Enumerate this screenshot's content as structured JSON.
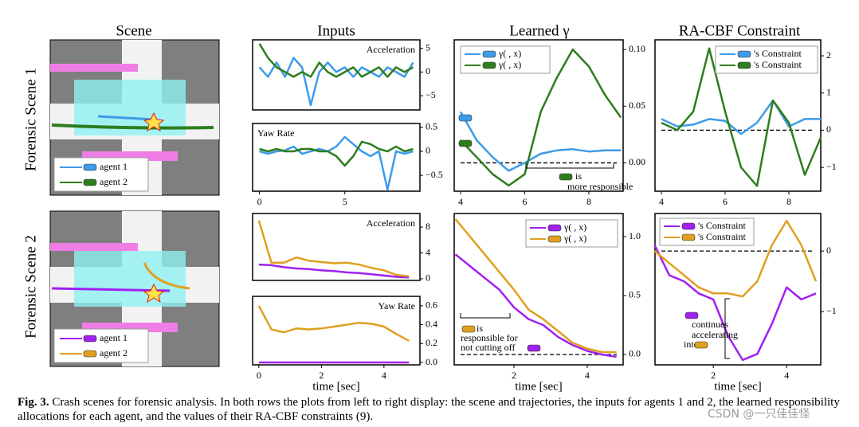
{
  "columns": [
    "Scene",
    "Inputs",
    "Learned γ",
    "RA-CBF Constraint"
  ],
  "rows": [
    "Forensic Scene 1",
    "Forensic Scene 2"
  ],
  "scenes": [
    {
      "legend": [
        "agent 1",
        "agent 2"
      ]
    },
    {
      "legend": [
        "agent 1",
        "agent 2"
      ]
    }
  ],
  "caption": {
    "label": "Fig. 3.",
    "text": "Crash scenes for forensic analysis. In both rows the plots from left to right display: the scene and trajectories, the inputs for agents 1 and 2, the learned responsibility allocations for each agent, and the values of their RA-CBF constraints (9)."
  },
  "watermark": "CSDN @一只佳佳怪",
  "chart_data": [
    {
      "type": "line",
      "title": "Acceleration",
      "x": [
        0,
        0.5,
        1,
        1.5,
        2,
        2.5,
        3,
        3.5,
        4,
        4.5,
        5,
        5.5,
        6,
        6.5,
        7,
        7.5,
        8,
        8.5,
        9
      ],
      "series": [
        {
          "name": "agent 1",
          "color": "#3d9be9",
          "values": [
            1,
            -1,
            2,
            -1,
            3,
            1,
            -7,
            0,
            2,
            0,
            1,
            -1,
            1,
            0,
            -1,
            1,
            0,
            -1,
            2
          ]
        },
        {
          "name": "agent 2",
          "color": "#2e7d1e",
          "values": [
            6,
            3,
            1,
            0,
            -1,
            0,
            -1,
            2,
            0,
            -1,
            0,
            1,
            -1,
            0,
            1,
            -1,
            1,
            0,
            1
          ]
        }
      ],
      "xlim": [
        -0.4,
        9.4
      ],
      "ylim": [
        -8,
        6.8
      ],
      "yticks": [
        5,
        0,
        {
          "value": -5,
          "label": "−5"
        }
      ]
    },
    {
      "type": "line",
      "title": "Yaw Rate",
      "x": [
        0,
        0.5,
        1,
        1.5,
        2,
        2.5,
        3,
        3.5,
        4,
        4.5,
        5,
        5.5,
        6,
        6.5,
        7,
        7.5,
        8,
        8.5,
        9
      ],
      "series": [
        {
          "name": "agent 1",
          "color": "#3d9be9",
          "values": [
            0,
            -0.05,
            0,
            0.02,
            0.1,
            -0.05,
            0,
            0.05,
            0,
            0.1,
            0.3,
            0.15,
            0,
            -0.1,
            0,
            -0.8,
            0,
            -0.05,
            0
          ]
        },
        {
          "name": "agent 2",
          "color": "#2e7d1e",
          "values": [
            0.05,
            0,
            0.05,
            0,
            0,
            0.05,
            0.05,
            0,
            0,
            -0.1,
            -0.3,
            -0.1,
            0.2,
            0.15,
            0.05,
            0,
            0.1,
            0,
            0.05
          ]
        }
      ],
      "xlim": [
        -0.4,
        9.4
      ],
      "ylim": [
        -0.83,
        0.58
      ],
      "yticks": [
        0.5,
        0,
        {
          "value": -0.5,
          "label": "−0.5"
        }
      ],
      "xticks": [
        0,
        5
      ]
    },
    {
      "type": "line",
      "x": [
        4,
        4.5,
        5,
        5.5,
        6,
        6.5,
        7,
        7.5,
        8,
        8.5,
        9
      ],
      "series": [
        {
          "name": "γ( , x)",
          "color": "#3d9be9",
          "values": [
            0.045,
            0.02,
            0.005,
            -0.007,
            0,
            0.008,
            0.011,
            0.012,
            0.01,
            0.011,
            0.011
          ]
        },
        {
          "name": "γ( , x)",
          "color": "#2e7d1e",
          "values": [
            0.02,
            0.005,
            -0.01,
            -0.02,
            -0.01,
            0.045,
            0.075,
            0.1,
            0.085,
            0.06,
            0.04
          ]
        }
      ],
      "xlim": [
        3.8,
        9.07
      ],
      "ylim": [
        -0.025,
        0.1085
      ],
      "yticks": [
        {
          "value": 0.1,
          "label": "0.10"
        },
        0.05,
        {
          "value": 0,
          "label": "0.00"
        }
      ],
      "xticks": [
        4,
        6,
        8
      ],
      "hline": 0,
      "annotations": [
        "is",
        "more responsible"
      ]
    },
    {
      "type": "line",
      "x": [
        4,
        4.5,
        5,
        5.5,
        6,
        6.5,
        7,
        7.5,
        8,
        8.5,
        9
      ],
      "series": [
        {
          "name": "'s Constraint",
          "color": "#3d9be9",
          "values": [
            0.3,
            0.1,
            0.15,
            0.3,
            0.25,
            -0.1,
            0.2,
            0.8,
            0.1,
            0.3,
            0.3
          ]
        },
        {
          "name": "'s Constraint",
          "color": "#2e7d1e",
          "values": [
            0.2,
            0,
            0.5,
            2.2,
            0.5,
            -1,
            -1.5,
            0.8,
            0.2,
            -1.2,
            -0.2
          ]
        }
      ],
      "xlim": [
        3.8,
        9
      ],
      "ylim": [
        -1.64,
        2.43
      ],
      "yticks": [
        2,
        1,
        0,
        {
          "value": -1,
          "label": "−1"
        }
      ],
      "xticks": [
        4,
        6,
        8
      ],
      "hline": 0
    },
    {
      "type": "line",
      "title": "Acceleration",
      "x": [
        0,
        0.4,
        0.8,
        1.2,
        1.6,
        2,
        2.4,
        2.8,
        3.2,
        3.6,
        4,
        4.4,
        4.8
      ],
      "series": [
        {
          "name": "agent 1",
          "color": "#a020f0",
          "values": [
            2.2,
            2.1,
            1.8,
            1.6,
            1.5,
            1.3,
            1.2,
            1,
            0.9,
            0.7,
            0.5,
            0.3,
            0.2
          ]
        },
        {
          "name": "agent 2",
          "color": "#e0a020",
          "values": [
            9,
            2.5,
            2.5,
            3.3,
            2.8,
            2.6,
            2.4,
            2.5,
            2.2,
            1.7,
            1.3,
            0.6,
            0.4
          ]
        }
      ],
      "xlim": [
        -0.2,
        5.15
      ],
      "ylim": [
        -0.25,
        10.1
      ],
      "yticks": [
        8,
        4,
        0
      ]
    },
    {
      "type": "line",
      "title": "Yaw Rate",
      "x": [
        0,
        0.4,
        0.8,
        1.2,
        1.6,
        2,
        2.4,
        2.8,
        3.2,
        3.6,
        4,
        4.4,
        4.8
      ],
      "series": [
        {
          "name": "agent 1",
          "color": "#a020f0",
          "values": [
            0,
            0,
            0,
            0,
            0,
            0,
            0,
            0,
            0,
            0,
            0,
            0,
            0
          ]
        },
        {
          "name": "agent 2",
          "color": "#e0a020",
          "values": [
            0.6,
            0.35,
            0.32,
            0.36,
            0.35,
            0.36,
            0.38,
            0.4,
            0.42,
            0.41,
            0.38,
            0.3,
            0.23
          ]
        }
      ],
      "xlim": [
        -0.2,
        5.15
      ],
      "ylim": [
        -0.025,
        0.7
      ],
      "yticks": [
        0.6,
        0.4,
        0.2,
        {
          "value": 0,
          "label": "0.0"
        }
      ],
      "xticks": [
        0,
        2,
        4
      ],
      "xlabel": "time [sec]"
    },
    {
      "type": "line",
      "x": [
        0.4,
        0.8,
        1.2,
        1.6,
        2,
        2.4,
        2.8,
        3.2,
        3.6,
        4,
        4.4,
        4.8
      ],
      "series": [
        {
          "name": "γ( , x)",
          "color": "#a020f0",
          "values": [
            0.85,
            0.75,
            0.65,
            0.55,
            0.4,
            0.3,
            0.25,
            0.15,
            0.08,
            0.03,
            0,
            -0.02
          ]
        },
        {
          "name": "γ( , x)",
          "color": "#e0a020",
          "values": [
            1.15,
            1,
            0.85,
            0.7,
            0.55,
            0.38,
            0.3,
            0.2,
            0.1,
            0.05,
            0.02,
            0.02
          ]
        }
      ],
      "xlim": [
        0.37,
        4.98
      ],
      "ylim": [
        -0.088,
        1.196
      ],
      "yticks": [
        {
          "value": 1,
          "label": "1.0"
        },
        0.5,
        {
          "value": 0,
          "label": "0.0"
        }
      ],
      "xticks": [
        2,
        4
      ],
      "hline": 0,
      "xlabel": "time [sec]",
      "annotations": [
        "is",
        "responsible for",
        "not cutting off"
      ]
    },
    {
      "type": "line",
      "x": [
        0.4,
        0.8,
        1.2,
        1.6,
        2,
        2.4,
        2.8,
        3.2,
        3.6,
        4,
        4.4,
        4.8
      ],
      "series": [
        {
          "name": "'s Constraint",
          "color": "#a020f0",
          "values": [
            0.1,
            -0.4,
            -0.5,
            -0.7,
            -0.8,
            -1.4,
            -1.8,
            -1.7,
            -1.2,
            -0.6,
            -0.8,
            -0.7
          ]
        },
        {
          "name": "'s Constraint",
          "color": "#e0a020",
          "values": [
            0,
            -0.2,
            -0.4,
            -0.6,
            -0.7,
            -0.7,
            -0.75,
            -0.5,
            0.1,
            0.5,
            0.1,
            -0.5
          ]
        }
      ],
      "xlim": [
        0.41,
        4.93
      ],
      "ylim": [
        -1.88,
        0.62
      ],
      "yticks": [
        0,
        {
          "value": -1,
          "label": "−1"
        }
      ],
      "xticks": [
        2,
        4
      ],
      "hline": 0,
      "xlabel": "time [sec]",
      "annotations": [
        "continues",
        "accelerating",
        "into"
      ]
    }
  ]
}
